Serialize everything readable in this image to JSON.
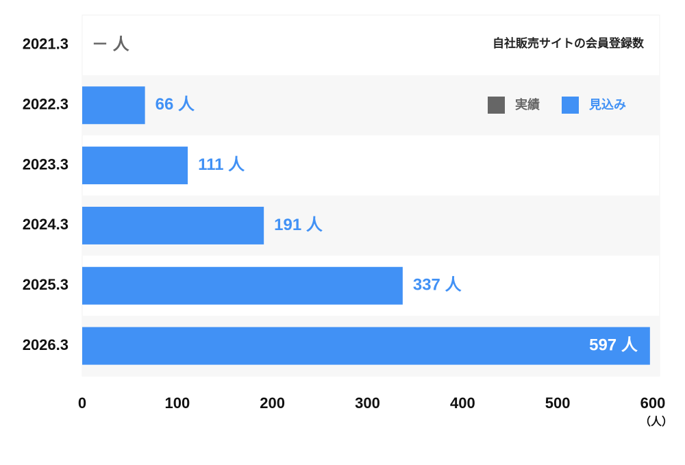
{
  "chart_data": {
    "type": "bar",
    "orientation": "horizontal",
    "title": "自社販売サイトの会員登録数",
    "categories": [
      "2021.3",
      "2022.3",
      "2023.3",
      "2024.3",
      "2025.3",
      "2026.3"
    ],
    "series": [
      {
        "name": "実績",
        "color": "#666666",
        "values": [
          null,
          null,
          null,
          null,
          null,
          null
        ],
        "value_labels": [
          "－ 人",
          null,
          null,
          null,
          null,
          null
        ]
      },
      {
        "name": "見込み",
        "color": "#4191f5",
        "values": [
          null,
          66,
          111,
          191,
          337,
          597
        ],
        "value_labels": [
          null,
          "66 人",
          "111 人",
          "191 人",
          "337 人",
          "597 人"
        ]
      }
    ],
    "xlim": [
      0,
      600
    ],
    "xticks": [
      0,
      100,
      200,
      300,
      400,
      500,
      600
    ],
    "x_unit": "（人）",
    "legend": "top-right"
  }
}
